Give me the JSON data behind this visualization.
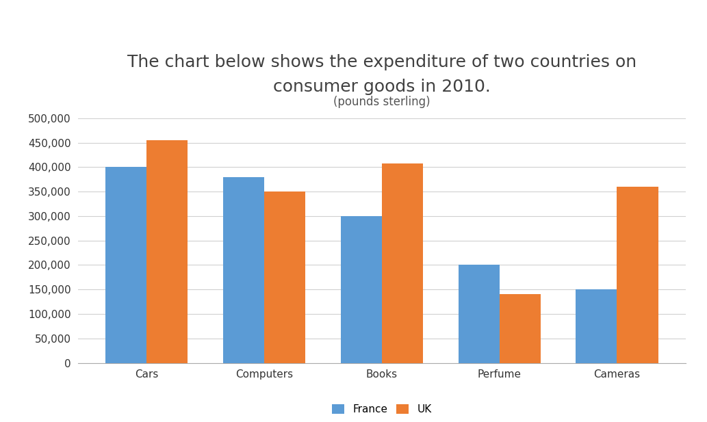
{
  "title_line1": "The chart below shows the expenditure of two countries on",
  "title_line2": "consumer goods in 2010.",
  "subtitle": "(pounds sterling)",
  "categories": [
    "Cars",
    "Computers",
    "Books",
    "Perfume",
    "Cameras"
  ],
  "france_values": [
    400000,
    380000,
    300000,
    200000,
    150000
  ],
  "uk_values": [
    455000,
    350000,
    408000,
    140000,
    360000
  ],
  "france_color": "#5B9BD5",
  "uk_color": "#ED7D31",
  "ylim": [
    0,
    500000
  ],
  "ytick_step": 50000,
  "legend_labels": [
    "France",
    "UK"
  ],
  "background_color": "#FFFFFF",
  "bar_width": 0.35,
  "title_fontsize": 18,
  "subtitle_fontsize": 12,
  "axis_tick_fontsize": 11,
  "legend_fontsize": 11
}
